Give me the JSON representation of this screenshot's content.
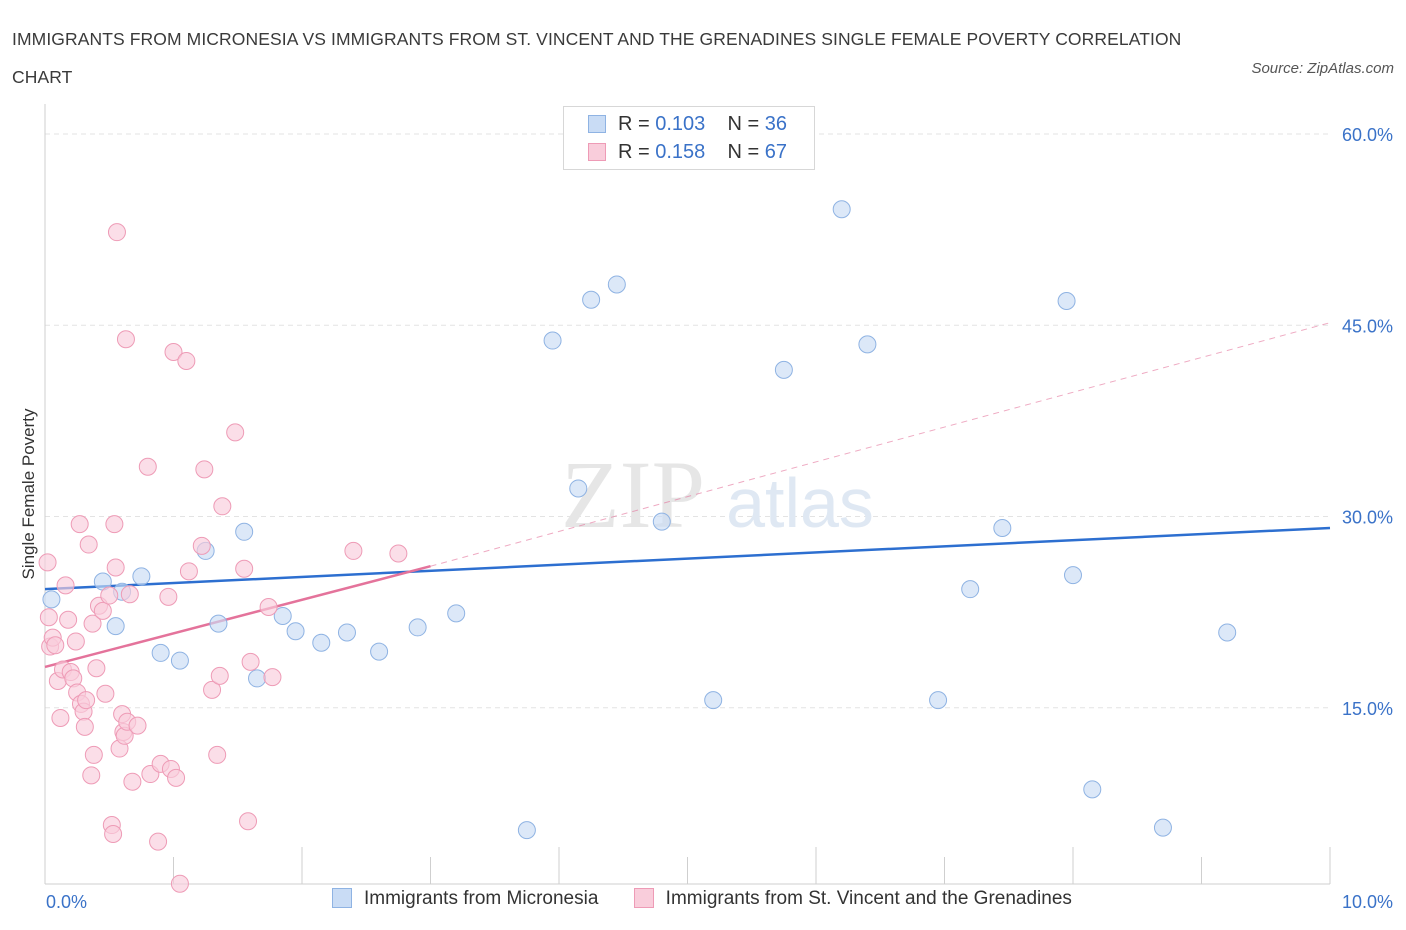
{
  "title": "IMMIGRANTS FROM MICRONESIA VS IMMIGRANTS FROM ST. VINCENT AND THE GRENADINES SINGLE FEMALE POVERTY CORRELATION CHART",
  "source": "Source: ZipAtlas.com",
  "watermark": {
    "zip": "ZIP",
    "atlas": "atlas"
  },
  "colors": {
    "blue_fill": "#c9dcf5",
    "blue_stroke": "#8fb3e3",
    "blue_line": "#2d6fd0",
    "pink_fill": "#f9cddb",
    "pink_stroke": "#ee9bb6",
    "pink_line": "#e4739b",
    "axis_label": "#3a72c8",
    "grid": "#e3e3e3"
  },
  "legend": {
    "rows": [
      {
        "r_label": "R = ",
        "r_value": "0.103",
        "n_label": "N = ",
        "n_value": "36",
        "color": "blue"
      },
      {
        "r_label": "R = ",
        "r_value": "0.158",
        "n_label": "N = ",
        "n_value": "67",
        "color": "pink"
      }
    ]
  },
  "chart_data": {
    "type": "scatter",
    "xlabel": "",
    "ylabel": "Single Female Poverty",
    "xlim": [
      0,
      10
    ],
    "ylim": [
      0,
      60
    ],
    "x_tick_labels": [
      "0.0%",
      "10.0%"
    ],
    "y_tick_labels": [
      "15.0%",
      "30.0%",
      "45.0%",
      "60.0%"
    ],
    "y_ticks": [
      15,
      30,
      45,
      60
    ],
    "grid": true,
    "series": [
      {
        "name": "Immigrants from Micronesia",
        "color": "blue",
        "points": [
          [
            0.05,
            23.5
          ],
          [
            0.45,
            24.9
          ],
          [
            0.6,
            24.1
          ],
          [
            0.55,
            21.4
          ],
          [
            0.75,
            25.3
          ],
          [
            0.9,
            19.3
          ],
          [
            1.05,
            18.7
          ],
          [
            1.25,
            27.3
          ],
          [
            1.35,
            21.6
          ],
          [
            1.55,
            28.8
          ],
          [
            1.65,
            17.3
          ],
          [
            1.85,
            22.2
          ],
          [
            1.95,
            21.0
          ],
          [
            2.15,
            20.1
          ],
          [
            2.35,
            20.9
          ],
          [
            2.6,
            19.4
          ],
          [
            2.9,
            21.3
          ],
          [
            3.2,
            22.4
          ],
          [
            3.75,
            5.4
          ],
          [
            3.95,
            43.8
          ],
          [
            4.15,
            32.2
          ],
          [
            4.25,
            47.0
          ],
          [
            4.45,
            48.2
          ],
          [
            4.8,
            29.6
          ],
          [
            5.2,
            15.6
          ],
          [
            5.75,
            41.5
          ],
          [
            6.2,
            54.1
          ],
          [
            6.4,
            43.5
          ],
          [
            6.95,
            15.6
          ],
          [
            7.2,
            24.3
          ],
          [
            7.45,
            29.1
          ],
          [
            7.95,
            46.9
          ],
          [
            8.0,
            25.4
          ],
          [
            8.15,
            8.6
          ],
          [
            8.7,
            5.6
          ],
          [
            9.2,
            20.9
          ]
        ],
        "trend": {
          "x": [
            0.0,
            10.0
          ],
          "y": [
            24.3,
            29.1
          ]
        }
      },
      {
        "name": "Immigrants from St. Vincent and the Grenadines",
        "color": "pink",
        "points": [
          [
            0.02,
            26.4
          ],
          [
            0.03,
            22.1
          ],
          [
            0.04,
            19.8
          ],
          [
            0.06,
            20.5
          ],
          [
            0.08,
            19.9
          ],
          [
            0.1,
            17.1
          ],
          [
            0.12,
            14.2
          ],
          [
            0.14,
            18.0
          ],
          [
            0.16,
            24.6
          ],
          [
            0.18,
            21.9
          ],
          [
            0.2,
            17.8
          ],
          [
            0.22,
            17.3
          ],
          [
            0.24,
            20.2
          ],
          [
            0.25,
            16.2
          ],
          [
            0.27,
            29.4
          ],
          [
            0.28,
            15.3
          ],
          [
            0.3,
            14.7
          ],
          [
            0.31,
            13.5
          ],
          [
            0.32,
            15.6
          ],
          [
            0.34,
            27.8
          ],
          [
            0.36,
            9.7
          ],
          [
            0.37,
            21.6
          ],
          [
            0.38,
            11.3
          ],
          [
            0.4,
            18.1
          ],
          [
            0.42,
            23.0
          ],
          [
            0.45,
            22.6
          ],
          [
            0.47,
            16.1
          ],
          [
            0.5,
            23.8
          ],
          [
            0.52,
            5.8
          ],
          [
            0.53,
            5.1
          ],
          [
            0.54,
            29.4
          ],
          [
            0.55,
            26.0
          ],
          [
            0.56,
            52.3
          ],
          [
            0.58,
            11.8
          ],
          [
            0.6,
            14.5
          ],
          [
            0.61,
            13.1
          ],
          [
            0.62,
            12.8
          ],
          [
            0.63,
            43.9
          ],
          [
            0.64,
            13.9
          ],
          [
            0.66,
            23.9
          ],
          [
            0.68,
            9.2
          ],
          [
            0.72,
            13.6
          ],
          [
            0.8,
            33.9
          ],
          [
            0.82,
            9.8
          ],
          [
            0.88,
            4.5
          ],
          [
            0.9,
            10.6
          ],
          [
            0.96,
            23.7
          ],
          [
            0.98,
            10.2
          ],
          [
            1.0,
            42.9
          ],
          [
            1.02,
            9.5
          ],
          [
            1.05,
            1.2
          ],
          [
            1.1,
            42.2
          ],
          [
            1.12,
            25.7
          ],
          [
            1.22,
            27.7
          ],
          [
            1.24,
            33.7
          ],
          [
            1.3,
            16.4
          ],
          [
            1.34,
            11.3
          ],
          [
            1.36,
            17.5
          ],
          [
            1.38,
            30.8
          ],
          [
            1.48,
            36.6
          ],
          [
            1.55,
            25.9
          ],
          [
            1.58,
            6.1
          ],
          [
            1.6,
            18.6
          ],
          [
            1.74,
            22.9
          ],
          [
            1.77,
            17.4
          ],
          [
            2.4,
            27.3
          ],
          [
            2.75,
            27.1
          ]
        ],
        "trend": {
          "x": [
            0.0,
            3.0
          ],
          "y": [
            18.2,
            26.1
          ]
        },
        "trend_extension": {
          "x": [
            3.0,
            10.0
          ],
          "y": [
            26.1,
            45.2
          ]
        }
      }
    ]
  },
  "bottom_legend": [
    "Immigrants from Micronesia",
    "Immigrants from St. Vincent and the Grenadines"
  ]
}
